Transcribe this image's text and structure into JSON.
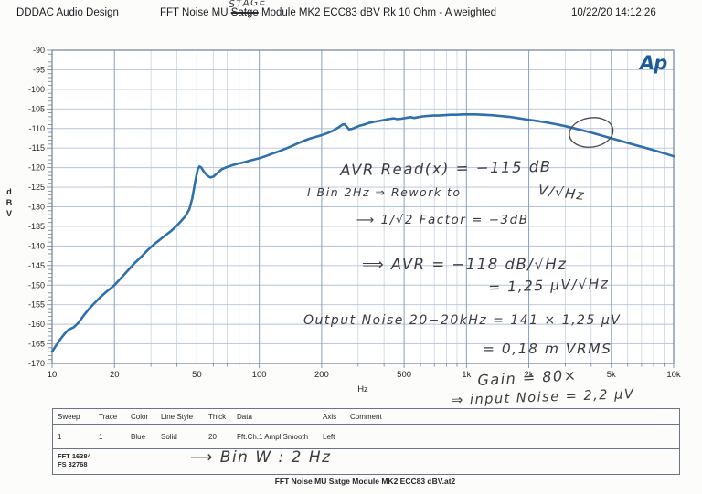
{
  "header": {
    "org": "DDDAC Audio Design",
    "title_pre": "FFT Noise MU ",
    "title_struck": "Satge",
    "title_post": " Module MK2 ECC83 dBV Rk 10 Ohm - A weighted",
    "datetime": "10/22/20 14:12:26"
  },
  "logo": {
    "text": "Ap",
    "color": "#1d5a9c"
  },
  "chart_data": {
    "type": "line",
    "title": "FFT Noise MU Stage Module MK2 ECC83 dBV Rk 10 Ohm - A weighted",
    "xlabel": "Hz",
    "ylabel": "dBV",
    "xscale": "log",
    "xlim": [
      10,
      10000
    ],
    "ylim": [
      -170,
      -90
    ],
    "grid": true,
    "x_tick_values": [
      10,
      20,
      50,
      100,
      200,
      500,
      1000,
      2000,
      5000,
      10000
    ],
    "x_tick_labels": [
      "10",
      "20",
      "50",
      "100",
      "200",
      "500",
      "1k",
      "2k",
      "5k",
      "10k"
    ],
    "y_tick_values": [
      -90,
      -95,
      -100,
      -105,
      -110,
      -115,
      -120,
      -125,
      -130,
      -135,
      -140,
      -145,
      -150,
      -155,
      -160,
      -165,
      -170
    ],
    "colors": {
      "curve": "#2e6fae",
      "grid_minor": "#c9d3e2",
      "grid_major": "#8aa0bf",
      "grid_horizontal": "#b5c3d8",
      "frame": "#74809a"
    },
    "series": [
      {
        "name": "Fft.Ch.1 Ampl|Smooth",
        "color": "#2e6fae",
        "points": [
          [
            10,
            -167
          ],
          [
            10.5,
            -165.3
          ],
          [
            11,
            -163.7
          ],
          [
            11.5,
            -162.4
          ],
          [
            12,
            -161.4
          ],
          [
            12.7,
            -160.8
          ],
          [
            13.4,
            -159.6
          ],
          [
            14.2,
            -157.8
          ],
          [
            15,
            -156.2
          ],
          [
            16,
            -154.6
          ],
          [
            17,
            -153.2
          ],
          [
            18,
            -152
          ],
          [
            19,
            -151
          ],
          [
            20,
            -150
          ],
          [
            21.5,
            -148.2
          ],
          [
            23,
            -146.5
          ],
          [
            25,
            -144.4
          ],
          [
            27,
            -142.7
          ],
          [
            29,
            -141
          ],
          [
            31,
            -139.6
          ],
          [
            33,
            -138.5
          ],
          [
            35,
            -137.4
          ],
          [
            37.5,
            -136.2
          ],
          [
            40,
            -134.8
          ],
          [
            42,
            -133.6
          ],
          [
            44,
            -132.4
          ],
          [
            46,
            -130.6
          ],
          [
            47.5,
            -127.8
          ],
          [
            49,
            -123.8
          ],
          [
            50.5,
            -120.4
          ],
          [
            51.5,
            -119.7
          ],
          [
            52.5,
            -120
          ],
          [
            54,
            -121
          ],
          [
            56,
            -122
          ],
          [
            58,
            -122.5
          ],
          [
            60,
            -122.3
          ],
          [
            63,
            -121.3
          ],
          [
            66,
            -120.4
          ],
          [
            70,
            -119.8
          ],
          [
            75,
            -119.3
          ],
          [
            80,
            -118.9
          ],
          [
            85,
            -118.6
          ],
          [
            90,
            -118.2
          ],
          [
            95,
            -117.9
          ],
          [
            100,
            -117.6
          ],
          [
            108,
            -117
          ],
          [
            116,
            -116.4
          ],
          [
            125,
            -115.8
          ],
          [
            135,
            -115.1
          ],
          [
            145,
            -114.4
          ],
          [
            155,
            -113.7
          ],
          [
            165,
            -113.1
          ],
          [
            175,
            -112.6
          ],
          [
            185,
            -112.2
          ],
          [
            195,
            -111.9
          ],
          [
            205,
            -111.5
          ],
          [
            215,
            -111.1
          ],
          [
            228,
            -110.5
          ],
          [
            240,
            -109.8
          ],
          [
            252,
            -109
          ],
          [
            258,
            -108.9
          ],
          [
            264,
            -109.5
          ],
          [
            271,
            -110.2
          ],
          [
            280,
            -110.1
          ],
          [
            292,
            -109.7
          ],
          [
            305,
            -109.3
          ],
          [
            320,
            -109
          ],
          [
            338,
            -108.6
          ],
          [
            356,
            -108.3
          ],
          [
            375,
            -108.1
          ],
          [
            395,
            -107.9
          ],
          [
            420,
            -107.6
          ],
          [
            445,
            -107.4
          ],
          [
            465,
            -107.6
          ],
          [
            485,
            -107.5
          ],
          [
            510,
            -107.3
          ],
          [
            535,
            -107.1
          ],
          [
            560,
            -107.3
          ],
          [
            585,
            -107.1
          ],
          [
            615,
            -106.9
          ],
          [
            650,
            -106.8
          ],
          [
            690,
            -106.7
          ],
          [
            730,
            -106.7
          ],
          [
            780,
            -106.6
          ],
          [
            840,
            -106.5
          ],
          [
            900,
            -106.5
          ],
          [
            960,
            -106.4
          ],
          [
            1030,
            -106.4
          ],
          [
            1100,
            -106.4
          ],
          [
            1200,
            -106.5
          ],
          [
            1320,
            -106.6
          ],
          [
            1450,
            -106.8
          ],
          [
            1600,
            -107
          ],
          [
            1750,
            -107.3
          ],
          [
            1950,
            -107.7
          ],
          [
            2150,
            -108
          ],
          [
            2400,
            -108.4
          ],
          [
            2700,
            -108.9
          ],
          [
            3000,
            -109.4
          ],
          [
            3350,
            -110
          ],
          [
            3700,
            -110.6
          ],
          [
            4100,
            -111.2
          ],
          [
            4500,
            -111.8
          ],
          [
            5000,
            -112.5
          ],
          [
            5500,
            -113.1
          ],
          [
            6100,
            -113.8
          ],
          [
            6800,
            -114.5
          ],
          [
            7500,
            -115.1
          ],
          [
            8300,
            -115.8
          ],
          [
            9100,
            -116.4
          ],
          [
            10000,
            -117.1
          ]
        ]
      }
    ],
    "annotation_circle": {
      "freq_hz": 4000,
      "dbv": -111
    }
  },
  "annotations": {
    "stage": "STAGE",
    "avr_read": "AVR   Read(x) = −115 dB",
    "v_per_rthz": "V/√Hz",
    "bin_rework": "I Bin 2Hz ⇒   Rework to",
    "factor": "⟶ 1/√2   Factor = −3dB",
    "avr_density": "⟹  AVR = −118 dB/√Hz",
    "uv_density": "= 1,25 µV/√Hz",
    "output_noise": "Output Noise 20−20kHz = 141 × 1,25 µV",
    "vrms": "= 0,18 m VRMS",
    "gain": "Gain = 80×",
    "input_noise": "⇒ input Noise = 2,2 µV",
    "bin_width": "⟶   Bin W :  2 Hz"
  },
  "table": {
    "headers": [
      "Sweep",
      "Trace",
      "Color",
      "Line Style",
      "Thick",
      "Data",
      "Axis",
      "Comment"
    ],
    "rows": [
      [
        "1",
        "1",
        "Blue",
        "Solid",
        "20",
        "Fft.Ch.1 Ampl|Smooth",
        "Left",
        ""
      ]
    ],
    "footer": [
      "FFT 16384",
      "FS 32768"
    ]
  },
  "caption": "FFT Noise MU Satge Module MK2 ECC83 dBV.at2"
}
